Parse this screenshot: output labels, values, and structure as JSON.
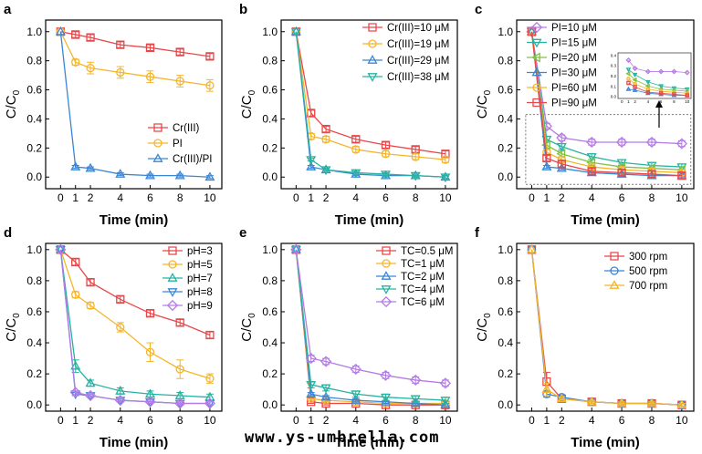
{
  "watermark": "www.ys-umbrella.com",
  "colors": {
    "red": "#e8484a",
    "yellow": "#f5b52a",
    "blue": "#3a86d6",
    "teal": "#26b3a0",
    "purple": "#b57be6",
    "axis": "#000000"
  },
  "chart_data": [
    {
      "panel": "a",
      "type": "line",
      "xlabel": "Time (min)",
      "ylabel": "C/C",
      "ylabel_sub": "0",
      "xlim": [
        -1,
        10.8
      ],
      "ylim": [
        -0.08,
        1.08
      ],
      "xticks": [
        0,
        1,
        2,
        4,
        6,
        8,
        10
      ],
      "yticks": [
        0.0,
        0.2,
        0.4,
        0.6,
        0.8,
        1.0
      ],
      "legend_position": "bottom-right",
      "series": [
        {
          "name": "Cr(III)",
          "color": "red",
          "marker": "square",
          "x": [
            0,
            1,
            2,
            4,
            6,
            8,
            10
          ],
          "y": [
            1.0,
            0.98,
            0.96,
            0.91,
            0.89,
            0.86,
            0.83
          ],
          "err": [
            0,
            0.02,
            0.02,
            0.02,
            0.02,
            0.02,
            0.02
          ]
        },
        {
          "name": "PI",
          "color": "yellow",
          "marker": "circle",
          "x": [
            0,
            1,
            2,
            4,
            6,
            8,
            10
          ],
          "y": [
            1.0,
            0.79,
            0.75,
            0.72,
            0.69,
            0.66,
            0.63
          ],
          "err": [
            0,
            0.02,
            0.04,
            0.04,
            0.04,
            0.04,
            0.04
          ]
        },
        {
          "name": "Cr(III)/PI",
          "color": "blue",
          "marker": "triangle-up",
          "x": [
            0,
            1,
            2,
            4,
            6,
            8,
            10
          ],
          "y": [
            1.0,
            0.07,
            0.06,
            0.02,
            0.01,
            0.01,
            0.0
          ],
          "err": [
            0,
            0.01,
            0.01,
            0.01,
            0.01,
            0.01,
            0.01
          ]
        }
      ]
    },
    {
      "panel": "b",
      "type": "line",
      "xlabel": "Time (min)",
      "ylabel": "C/C",
      "ylabel_sub": "0",
      "xlim": [
        -1,
        10.8
      ],
      "ylim": [
        -0.08,
        1.08
      ],
      "xticks": [
        0,
        1,
        2,
        4,
        6,
        8,
        10
      ],
      "yticks": [
        0.0,
        0.2,
        0.4,
        0.6,
        0.8,
        1.0
      ],
      "legend_position": "top-right",
      "series": [
        {
          "name": "Cr(III)=10 μM",
          "color": "red",
          "marker": "square",
          "x": [
            0,
            1,
            2,
            4,
            6,
            8,
            10
          ],
          "y": [
            1.0,
            0.44,
            0.33,
            0.26,
            0.22,
            0.19,
            0.16
          ],
          "err": [
            0,
            0.02,
            0.02,
            0.02,
            0.02,
            0.02,
            0.02
          ]
        },
        {
          "name": "Cr(III)=19 μM",
          "color": "yellow",
          "marker": "circle",
          "x": [
            0,
            1,
            2,
            4,
            6,
            8,
            10
          ],
          "y": [
            1.0,
            0.28,
            0.26,
            0.19,
            0.16,
            0.14,
            0.12
          ],
          "err": [
            0,
            0.02,
            0.02,
            0.02,
            0.02,
            0.02,
            0.02
          ]
        },
        {
          "name": "Cr(III)=29 μM",
          "color": "blue",
          "marker": "triangle-up",
          "x": [
            0,
            1,
            2,
            4,
            6,
            8,
            10
          ],
          "y": [
            1.0,
            0.07,
            0.05,
            0.02,
            0.01,
            0.01,
            0.0
          ],
          "err": [
            0,
            0.01,
            0.01,
            0.01,
            0.01,
            0.01,
            0.01
          ]
        },
        {
          "name": "Cr(III)=38 μM",
          "color": "teal",
          "marker": "triangle-down",
          "x": [
            0,
            1,
            2,
            4,
            6,
            8,
            10
          ],
          "y": [
            1.0,
            0.12,
            0.05,
            0.03,
            0.02,
            0.01,
            0.0
          ],
          "err": [
            0,
            0.01,
            0.01,
            0.01,
            0.01,
            0.01,
            0.01
          ]
        }
      ]
    },
    {
      "panel": "c",
      "type": "line",
      "xlabel": "Time (min)",
      "ylabel": "C/C",
      "ylabel_sub": "0",
      "xlim": [
        -1,
        10.8
      ],
      "ylim": [
        -0.08,
        1.08
      ],
      "xticks": [
        0,
        1,
        2,
        4,
        6,
        8,
        10
      ],
      "yticks": [
        0.0,
        0.2,
        0.4,
        0.6,
        0.8,
        1.0
      ],
      "legend_position": "top-left",
      "annotation": "dashed box marks magnified inset (0.0-0.4 range)",
      "inset_yticks": [
        "0.4",
        "0.3",
        "0.2",
        "0.1",
        "0.0"
      ],
      "inset_xticks": [
        "0",
        "1",
        "2",
        "4",
        "6",
        "8",
        "10"
      ],
      "series": [
        {
          "name": "PI=10 μM",
          "color": "purple",
          "marker": "diamond",
          "x": [
            0,
            1,
            2,
            4,
            6,
            8,
            10
          ],
          "y": [
            1.0,
            0.35,
            0.27,
            0.24,
            0.24,
            0.24,
            0.23
          ],
          "err": [
            0,
            0.02,
            0.02,
            0.02,
            0.02,
            0.02,
            0.02
          ]
        },
        {
          "name": "PI=15 μM",
          "color": "teal",
          "marker": "triangle-down",
          "x": [
            0,
            1,
            2,
            4,
            6,
            8,
            10
          ],
          "y": [
            1.0,
            0.26,
            0.21,
            0.14,
            0.1,
            0.08,
            0.07
          ],
          "err": [
            0,
            0.02,
            0.02,
            0.02,
            0.02,
            0.02,
            0.02
          ]
        },
        {
          "name": "PI=20 μM",
          "color": "#7dc242",
          "marker": "triangle-left",
          "x": [
            0,
            1,
            2,
            4,
            6,
            8,
            10
          ],
          "y": [
            1.0,
            0.22,
            0.16,
            0.1,
            0.07,
            0.06,
            0.05
          ],
          "err": [
            0,
            0.02,
            0.02,
            0.02,
            0.02,
            0.02,
            0.02
          ]
        },
        {
          "name": "PI=30 μM",
          "color": "blue",
          "marker": "triangle-up",
          "x": [
            0,
            1,
            2,
            4,
            6,
            8,
            10
          ],
          "y": [
            1.0,
            0.07,
            0.06,
            0.03,
            0.02,
            0.01,
            0.01
          ],
          "err": [
            0,
            0.01,
            0.01,
            0.01,
            0.01,
            0.01,
            0.01
          ]
        },
        {
          "name": "PI=60 μM",
          "color": "yellow",
          "marker": "circle",
          "x": [
            0,
            1,
            2,
            4,
            6,
            8,
            10
          ],
          "y": [
            1.0,
            0.17,
            0.12,
            0.07,
            0.05,
            0.04,
            0.03
          ],
          "err": [
            0,
            0.02,
            0.02,
            0.02,
            0.02,
            0.02,
            0.02
          ]
        },
        {
          "name": "PI=90 μM",
          "color": "red",
          "marker": "square",
          "x": [
            0,
            1,
            2,
            4,
            6,
            8,
            10
          ],
          "y": [
            1.0,
            0.13,
            0.09,
            0.04,
            0.03,
            0.02,
            0.01
          ],
          "err": [
            0,
            0.02,
            0.02,
            0.02,
            0.02,
            0.02,
            0.02
          ]
        }
      ]
    },
    {
      "panel": "d",
      "type": "line",
      "xlabel": "Time (min)",
      "ylabel": "C/C",
      "ylabel_sub": "0",
      "xlim": [
        -1,
        10.8
      ],
      "ylim": [
        -0.04,
        1.04
      ],
      "xticks": [
        0,
        1,
        2,
        4,
        6,
        8,
        10
      ],
      "yticks": [
        0.0,
        0.2,
        0.4,
        0.6,
        0.8,
        1.0
      ],
      "legend_position": "top-right",
      "series": [
        {
          "name": "pH=3",
          "color": "red",
          "marker": "square",
          "x": [
            0,
            1,
            2,
            4,
            6,
            8,
            10
          ],
          "y": [
            1.0,
            0.92,
            0.79,
            0.68,
            0.59,
            0.53,
            0.45
          ],
          "err": [
            0,
            0.02,
            0.02,
            0.02,
            0.02,
            0.02,
            0.02
          ]
        },
        {
          "name": "pH=5",
          "color": "yellow",
          "marker": "circle",
          "x": [
            0,
            1,
            2,
            4,
            6,
            8,
            10
          ],
          "y": [
            1.0,
            0.71,
            0.64,
            0.5,
            0.34,
            0.23,
            0.17
          ],
          "err": [
            0,
            0.02,
            0.02,
            0.03,
            0.06,
            0.06,
            0.03
          ]
        },
        {
          "name": "pH=7",
          "color": "teal",
          "marker": "triangle-up",
          "x": [
            0,
            1,
            2,
            4,
            6,
            8,
            10
          ],
          "y": [
            1.0,
            0.25,
            0.14,
            0.09,
            0.07,
            0.06,
            0.05
          ],
          "err": [
            0,
            0.04,
            0.02,
            0.02,
            0.02,
            0.02,
            0.02
          ]
        },
        {
          "name": "pH=8",
          "color": "blue",
          "marker": "triangle-down",
          "x": [
            0,
            1,
            2,
            4,
            6,
            8,
            10
          ],
          "y": [
            1.0,
            0.07,
            0.06,
            0.03,
            0.02,
            0.01,
            0.01
          ],
          "err": [
            0,
            0.01,
            0.01,
            0.01,
            0.01,
            0.01,
            0.01
          ]
        },
        {
          "name": "pH=9",
          "color": "purple",
          "marker": "diamond",
          "x": [
            0,
            1,
            2,
            4,
            6,
            8,
            10
          ],
          "y": [
            1.0,
            0.08,
            0.06,
            0.03,
            0.02,
            0.01,
            0.01
          ],
          "err": [
            0,
            0.01,
            0.01,
            0.01,
            0.01,
            0.01,
            0.01
          ]
        }
      ]
    },
    {
      "panel": "e",
      "type": "line",
      "xlabel": "Time (min)",
      "ylabel": "C/C",
      "ylabel_sub": "0",
      "xlim": [
        -1,
        10.8
      ],
      "ylim": [
        -0.04,
        1.04
      ],
      "xticks": [
        0,
        1,
        2,
        4,
        6,
        8,
        10
      ],
      "yticks": [
        0.0,
        0.2,
        0.4,
        0.6,
        0.8,
        1.0
      ],
      "legend_position": "top-right",
      "series": [
        {
          "name": "TC=0.5 μM",
          "color": "red",
          "marker": "square",
          "x": [
            0,
            1,
            2,
            4,
            6,
            8,
            10
          ],
          "y": [
            1.0,
            0.02,
            0.01,
            0.01,
            0.0,
            0.0,
            0.0
          ],
          "err": [
            0,
            0.01,
            0.01,
            0.01,
            0.01,
            0.01,
            0.01
          ]
        },
        {
          "name": "TC=1 μM",
          "color": "yellow",
          "marker": "circle",
          "x": [
            0,
            1,
            2,
            4,
            6,
            8,
            10
          ],
          "y": [
            1.0,
            0.04,
            0.03,
            0.02,
            0.01,
            0.01,
            0.01
          ],
          "err": [
            0,
            0.01,
            0.01,
            0.01,
            0.01,
            0.01,
            0.01
          ]
        },
        {
          "name": "TC=2 μM",
          "color": "blue",
          "marker": "triangle-up",
          "x": [
            0,
            1,
            2,
            4,
            6,
            8,
            10
          ],
          "y": [
            1.0,
            0.07,
            0.05,
            0.03,
            0.02,
            0.01,
            0.0
          ],
          "err": [
            0,
            0.01,
            0.01,
            0.01,
            0.01,
            0.01,
            0.01
          ]
        },
        {
          "name": "TC=4 μM",
          "color": "teal",
          "marker": "triangle-down",
          "x": [
            0,
            1,
            2,
            4,
            6,
            8,
            10
          ],
          "y": [
            1.0,
            0.13,
            0.11,
            0.07,
            0.05,
            0.04,
            0.03
          ],
          "err": [
            0,
            0.02,
            0.02,
            0.02,
            0.02,
            0.02,
            0.02
          ]
        },
        {
          "name": "TC=6 μM",
          "color": "purple",
          "marker": "diamond",
          "x": [
            0,
            1,
            2,
            4,
            6,
            8,
            10
          ],
          "y": [
            1.0,
            0.3,
            0.28,
            0.23,
            0.19,
            0.16,
            0.14
          ],
          "err": [
            0,
            0.02,
            0.02,
            0.02,
            0.02,
            0.02,
            0.02
          ]
        }
      ]
    },
    {
      "panel": "f",
      "type": "line",
      "xlabel": "Time (min)",
      "ylabel": "C/C",
      "ylabel_sub": "0",
      "xlim": [
        -1,
        10.8
      ],
      "ylim": [
        -0.04,
        1.04
      ],
      "xticks": [
        0,
        1,
        2,
        4,
        6,
        8,
        10
      ],
      "yticks": [
        0.0,
        0.2,
        0.4,
        0.6,
        0.8,
        1.0
      ],
      "legend_position": "top-right",
      "series": [
        {
          "name": "300 rpm",
          "color": "red",
          "marker": "square",
          "x": [
            0,
            1,
            2,
            4,
            6,
            8,
            10
          ],
          "y": [
            1.0,
            0.15,
            0.04,
            0.02,
            0.01,
            0.01,
            0.0
          ],
          "err": [
            0,
            0.06,
            0.01,
            0.01,
            0.01,
            0.01,
            0.01
          ]
        },
        {
          "name": "500 rpm",
          "color": "blue",
          "marker": "circle",
          "x": [
            0,
            1,
            2,
            4,
            6,
            8,
            10
          ],
          "y": [
            1.0,
            0.07,
            0.05,
            0.02,
            0.01,
            0.01,
            0.0
          ],
          "err": [
            0,
            0.02,
            0.01,
            0.01,
            0.01,
            0.01,
            0.01
          ]
        },
        {
          "name": "700 rpm",
          "color": "yellow",
          "marker": "triangle-up",
          "x": [
            0,
            1,
            2,
            4,
            6,
            8,
            10
          ],
          "y": [
            1.0,
            0.1,
            0.04,
            0.02,
            0.01,
            0.01,
            0.0
          ],
          "err": [
            0,
            0.04,
            0.01,
            0.01,
            0.01,
            0.01,
            0.01
          ]
        }
      ]
    }
  ]
}
